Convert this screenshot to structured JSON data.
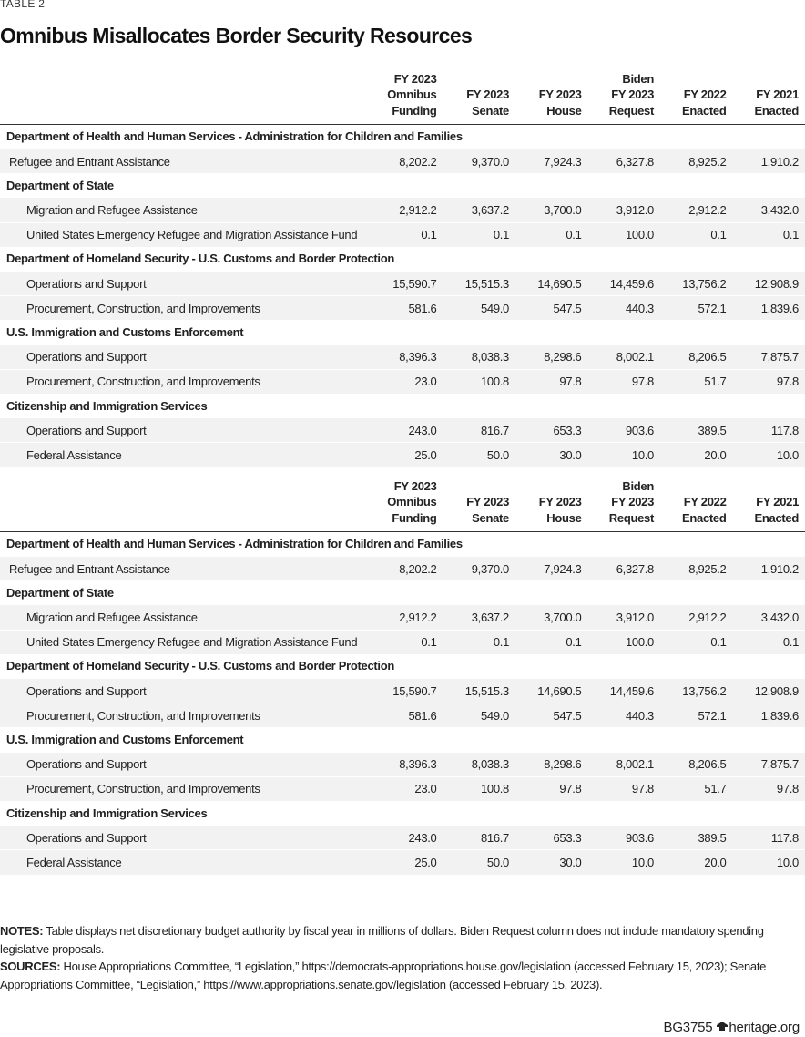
{
  "header": {
    "label": "TABLE 2",
    "title": "Omnibus Misallocates Border Security Resources"
  },
  "tables": [
    {
      "columns": [
        [
          "FY 2023",
          "Omnibus",
          "Funding"
        ],
        [
          "FY 2023",
          "Senate"
        ],
        [
          "FY 2023",
          "House"
        ],
        [
          "Biden",
          "FY 2023",
          "Request"
        ],
        [
          "FY 2022",
          "Enacted"
        ],
        [
          "FY 2021",
          "Enacted"
        ]
      ],
      "sections": [
        {
          "title": "Department of Health and Human Services - Administration for Children and Families",
          "rows": [
            {
              "label": "Refugee and Entrant Assistance",
              "values": [
                "8,202.2",
                "9,370.0",
                "7,924.3",
                "6,327.8",
                "8,925.2",
                "1,910.2"
              ]
            }
          ]
        },
        {
          "title": "Department of State",
          "rows": [
            {
              "label": "Migration and Refugee Assistance",
              "values": [
                "2,912.2",
                "3,637.2",
                "3,700.0",
                "3,912.0",
                "2,912.2",
                "3,432.0"
              ]
            },
            {
              "label": "United States Emergency Refugee and Migration Assistance Fund",
              "values": [
                "0.1",
                "0.1",
                "0.1",
                "100.0",
                "0.1",
                "0.1"
              ]
            }
          ]
        },
        {
          "title": "Department of Homeland Security - U.S. Customs and Border Protection",
          "rows": [
            {
              "label": "Operations and Support",
              "values": [
                "15,590.7",
                "15,515.3",
                "14,690.5",
                "14,459.6",
                "13,756.2",
                "12,908.9"
              ]
            },
            {
              "label": "Procurement, Construction, and Improvements",
              "values": [
                "581.6",
                "549.0",
                "547.5",
                "440.3",
                "572.1",
                "1,839.6"
              ]
            }
          ]
        },
        {
          "title": "U.S. Immigration and Customs Enforcement",
          "rows": [
            {
              "label": "Operations and Support",
              "values": [
                "8,396.3",
                "8,038.3",
                "8,298.6",
                "8,002.1",
                "8,206.5",
                "7,875.7"
              ]
            },
            {
              "label": "Procurement, Construction, and Improvements",
              "values": [
                "23.0",
                "100.8",
                "97.8",
                "97.8",
                "51.7",
                "97.8"
              ]
            }
          ]
        },
        {
          "title": "Citizenship and Immigration Services",
          "rows": [
            {
              "label": "Operations and Support",
              "values": [
                "243.0",
                "816.7",
                "653.3",
                "903.6",
                "389.5",
                "117.8"
              ]
            },
            {
              "label": "Federal Assistance",
              "values": [
                "25.0",
                "50.0",
                "30.0",
                "10.0",
                "20.0",
                "10.0"
              ]
            }
          ]
        }
      ]
    },
    {
      "columns": [
        [
          "FY 2023",
          "Omnibus",
          "Funding"
        ],
        [
          "FY 2023",
          "Senate"
        ],
        [
          "FY 2023",
          "House"
        ],
        [
          "Biden",
          "FY 2023",
          "Request"
        ],
        [
          "FY 2022",
          "Enacted"
        ],
        [
          "FY 2021",
          "Enacted"
        ]
      ],
      "sections": [
        {
          "title": "Department of Health and Human Services - Administration for Children and Families",
          "rows": [
            {
              "label": "Refugee and Entrant Assistance",
              "values": [
                "8,202.2",
                "9,370.0",
                "7,924.3",
                "6,327.8",
                "8,925.2",
                "1,910.2"
              ]
            }
          ]
        },
        {
          "title": "Department of State",
          "rows": [
            {
              "label": "Migration and Refugee Assistance",
              "values": [
                "2,912.2",
                "3,637.2",
                "3,700.0",
                "3,912.0",
                "2,912.2",
                "3,432.0"
              ]
            },
            {
              "label": "United States Emergency Refugee and Migration Assistance Fund",
              "values": [
                "0.1",
                "0.1",
                "0.1",
                "100.0",
                "0.1",
                "0.1"
              ]
            }
          ]
        },
        {
          "title": "Department of Homeland Security - U.S. Customs and Border Protection",
          "rows": [
            {
              "label": "Operations and Support",
              "values": [
                "15,590.7",
                "15,515.3",
                "14,690.5",
                "14,459.6",
                "13,756.2",
                "12,908.9"
              ]
            },
            {
              "label": "Procurement, Construction, and Improvements",
              "values": [
                "581.6",
                "549.0",
                "547.5",
                "440.3",
                "572.1",
                "1,839.6"
              ]
            }
          ]
        },
        {
          "title": "U.S. Immigration and Customs Enforcement",
          "rows": [
            {
              "label": "Operations and Support",
              "values": [
                "8,396.3",
                "8,038.3",
                "8,298.6",
                "8,002.1",
                "8,206.5",
                "7,875.7"
              ]
            },
            {
              "label": "Procurement, Construction, and Improvements",
              "values": [
                "23.0",
                "100.8",
                "97.8",
                "97.8",
                "51.7",
                "97.8"
              ]
            }
          ]
        },
        {
          "title": "Citizenship and Immigration Services",
          "rows": [
            {
              "label": "Operations and Support",
              "values": [
                "243.0",
                "816.7",
                "653.3",
                "903.6",
                "389.5",
                "117.8"
              ]
            },
            {
              "label": "Federal Assistance",
              "values": [
                "25.0",
                "50.0",
                "30.0",
                "10.0",
                "20.0",
                "10.0"
              ]
            }
          ]
        }
      ]
    }
  ],
  "notes": {
    "label": "NOTES:",
    "text": "Table displays net discretionary budget authority by fiscal year in millions of dollars. Biden Request column does not include mandatory spending legislative proposals."
  },
  "sources": {
    "label": "SOURCES:",
    "text": "House Appropriations Committee, “Legislation,” https://democrats-appropriations.house.gov/legislation (accessed February 15, 2023); Senate Appropriations Committee, “Legislation,” https://www.appropriations.senate.gov/legislation (accessed February 15, 2023)."
  },
  "footer": {
    "code": "BG3755",
    "site": "heritage.org"
  }
}
